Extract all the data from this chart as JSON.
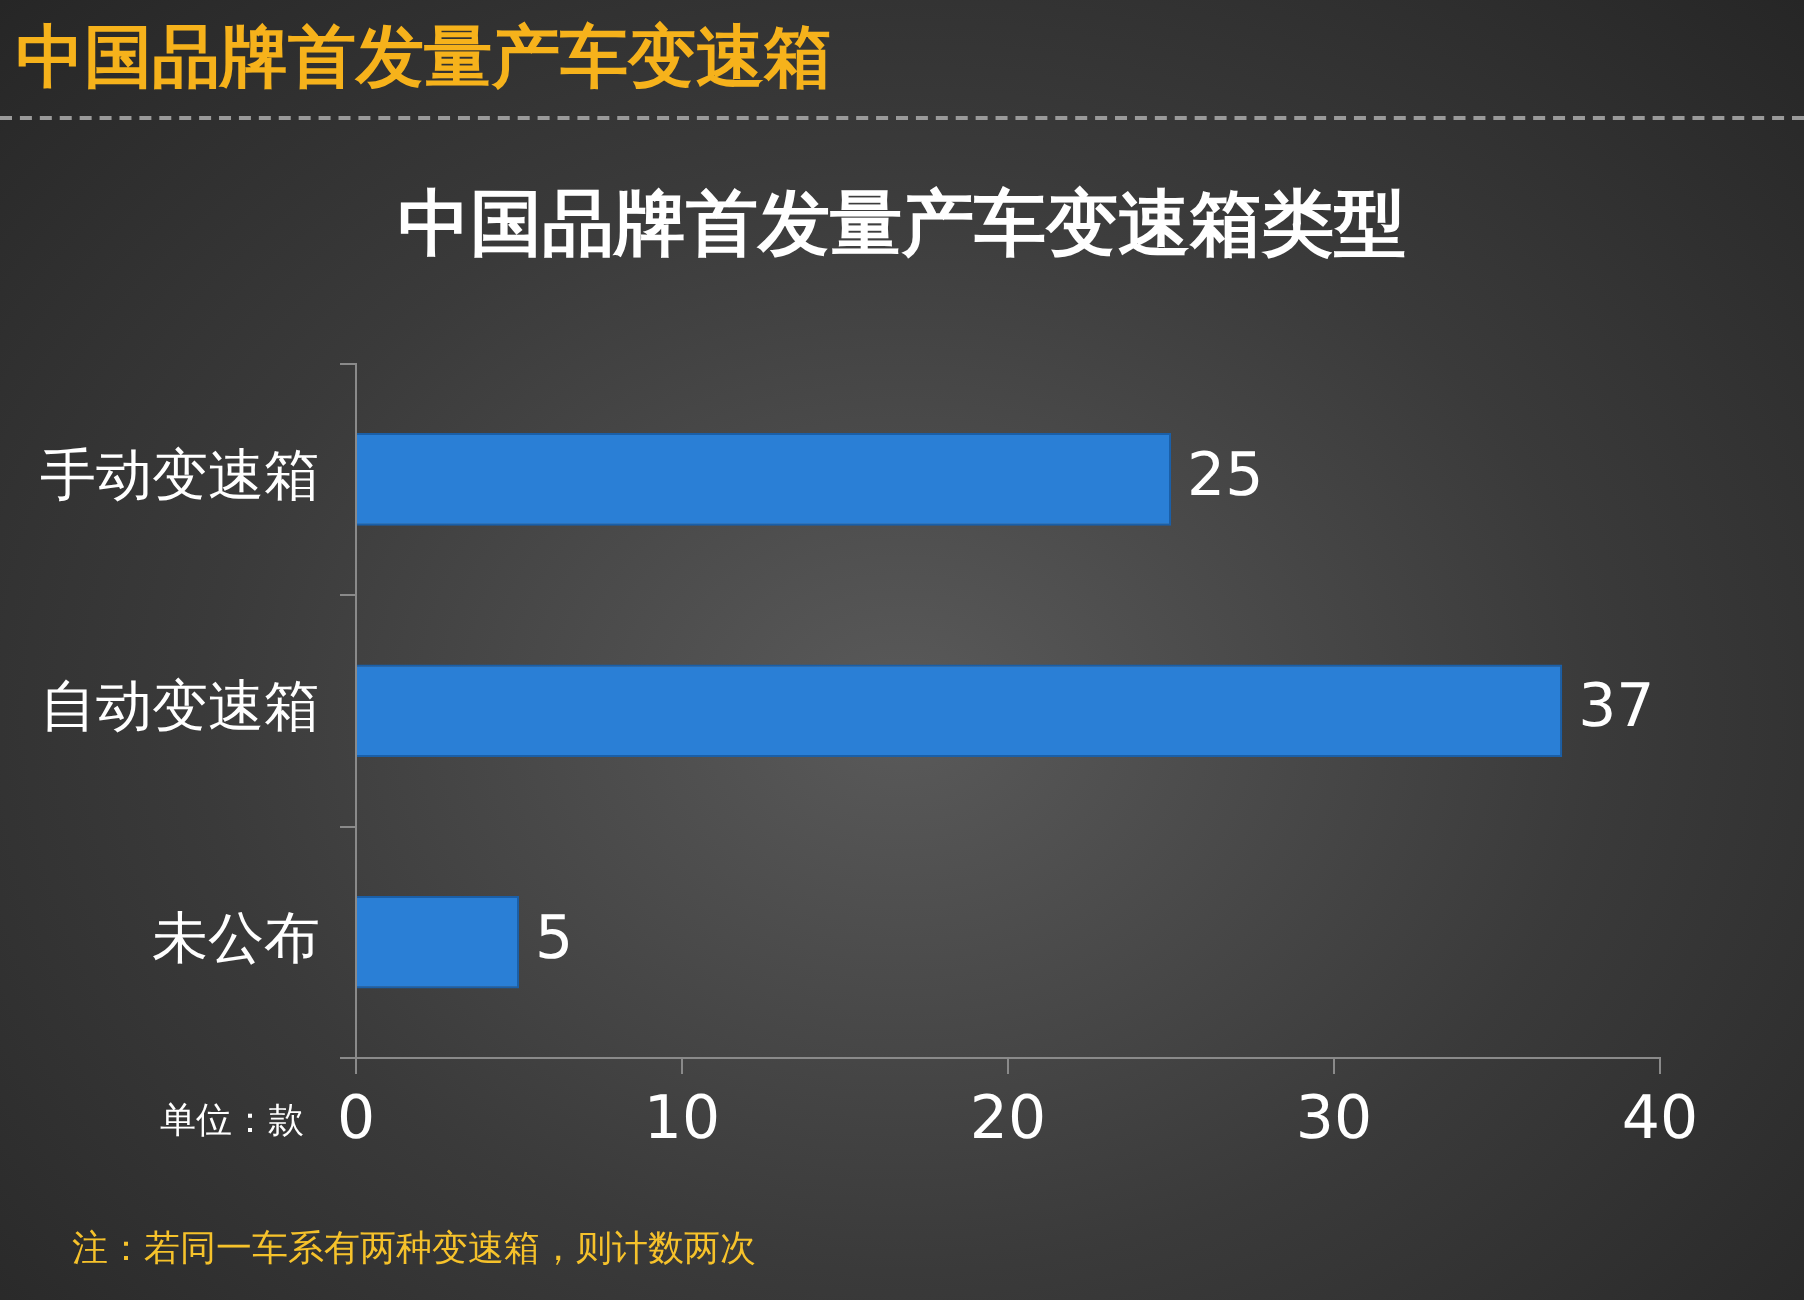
{
  "chart_data": {
    "type": "bar",
    "orientation": "horizontal",
    "title": "中国品牌首发量产车变速箱",
    "subtitle": "中国品牌首发量产车变速箱类型",
    "categories": [
      "手动变速箱",
      "自动变速箱",
      "未公布"
    ],
    "values": [
      25,
      37,
      5
    ],
    "color": "#2a7fd6",
    "data_labels": true,
    "xlim": [
      0,
      40
    ],
    "xticks": [
      0,
      10,
      20,
      30,
      40
    ],
    "grid": false,
    "legend": false,
    "annotations": [
      "单位：款",
      "注：若同一车系有两种变速箱，则计数两次"
    ]
  }
}
